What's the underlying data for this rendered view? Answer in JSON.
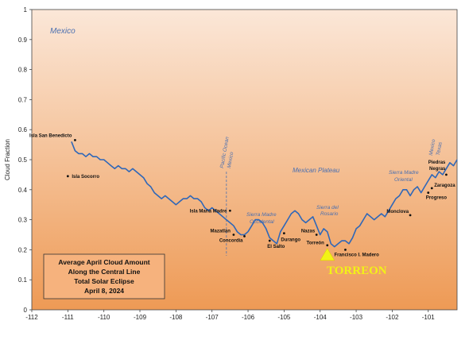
{
  "chart_data": {
    "type": "line",
    "ylabel": "Cloud Fraction",
    "xlim": [
      -112,
      -100.2
    ],
    "ylim": [
      0,
      1
    ],
    "xticks": [
      "-112",
      "-111",
      "-110",
      "-109",
      "-108",
      "-107",
      "-106",
      "-105",
      "-104",
      "-103",
      "-102",
      "-101"
    ],
    "yticks": [
      "0",
      "0.1",
      "0.2",
      "0.3",
      "0.4",
      "0.5",
      "0.6",
      "0.7",
      "0.8",
      "0.9",
      "1"
    ],
    "background_gradient": [
      "#fbe7d8",
      "#ee9a55"
    ],
    "line_color": "#2f67b8",
    "series": [
      {
        "x": [
          -110.9,
          -110.8,
          -110.7,
          -110.6,
          -110.5,
          -110.4,
          -110.3,
          -110.2,
          -110.1,
          -110.0,
          -109.9,
          -109.8,
          -109.7,
          -109.6,
          -109.5,
          -109.4,
          -109.3,
          -109.2,
          -109.1,
          -109.0,
          -108.9,
          -108.8,
          -108.7,
          -108.6,
          -108.5,
          -108.4,
          -108.3,
          -108.2,
          -108.1,
          -108.0,
          -107.9,
          -107.8,
          -107.7,
          -107.6,
          -107.5,
          -107.4,
          -107.3,
          -107.2,
          -107.1,
          -107.0,
          -106.9,
          -106.8,
          -106.7,
          -106.6,
          -106.5,
          -106.4,
          -106.3,
          -106.2,
          -106.1,
          -106.0,
          -105.9,
          -105.8,
          -105.7,
          -105.6,
          -105.5,
          -105.4,
          -105.3,
          -105.2,
          -105.1,
          -105.0,
          -104.9,
          -104.8,
          -104.7,
          -104.6,
          -104.5,
          -104.4,
          -104.3,
          -104.2,
          -104.1,
          -104.0,
          -103.9,
          -103.8,
          -103.7,
          -103.6,
          -103.5,
          -103.4,
          -103.3,
          -103.2,
          -103.1,
          -103.0,
          -102.9,
          -102.8,
          -102.7,
          -102.6,
          -102.5,
          -102.4,
          -102.3,
          -102.2,
          -102.1,
          -102.0,
          -101.9,
          -101.8,
          -101.7,
          -101.6,
          -101.5,
          -101.4,
          -101.3,
          -101.2,
          -101.1,
          -101.0,
          -100.9,
          -100.8,
          -100.7,
          -100.6,
          -100.5,
          -100.4,
          -100.3,
          -100.2
        ],
        "y": [
          0.56,
          0.53,
          0.52,
          0.52,
          0.51,
          0.52,
          0.51,
          0.51,
          0.5,
          0.5,
          0.49,
          0.48,
          0.47,
          0.48,
          0.47,
          0.47,
          0.46,
          0.47,
          0.46,
          0.45,
          0.44,
          0.42,
          0.41,
          0.39,
          0.38,
          0.37,
          0.38,
          0.37,
          0.36,
          0.35,
          0.36,
          0.37,
          0.37,
          0.38,
          0.37,
          0.37,
          0.36,
          0.34,
          0.33,
          0.34,
          0.33,
          0.32,
          0.31,
          0.3,
          0.29,
          0.28,
          0.26,
          0.25,
          0.25,
          0.26,
          0.28,
          0.3,
          0.3,
          0.29,
          0.27,
          0.24,
          0.23,
          0.22,
          0.26,
          0.28,
          0.3,
          0.32,
          0.33,
          0.32,
          0.3,
          0.29,
          0.3,
          0.31,
          0.28,
          0.25,
          0.27,
          0.26,
          0.22,
          0.21,
          0.22,
          0.23,
          0.23,
          0.22,
          0.24,
          0.27,
          0.28,
          0.3,
          0.32,
          0.31,
          0.3,
          0.31,
          0.32,
          0.31,
          0.33,
          0.35,
          0.37,
          0.38,
          0.4,
          0.4,
          0.38,
          0.4,
          0.41,
          0.39,
          0.41,
          0.43,
          0.45,
          0.44,
          0.46,
          0.45,
          0.47,
          0.49,
          0.48,
          0.5
        ]
      }
    ],
    "sites": [
      {
        "name": "Isla San Benedicto",
        "x": -110.8,
        "y": 0.565
      },
      {
        "name": "Isla Socorro",
        "x": -111.0,
        "y": 0.445
      },
      {
        "name": "Isla Maria Madre",
        "x": -106.5,
        "y": 0.33
      },
      {
        "name": "Mazatlan",
        "x": -106.4,
        "y": 0.25
      },
      {
        "name": "Concordia",
        "x": -106.1,
        "y": 0.245
      },
      {
        "name": "El Salto",
        "x": -105.4,
        "y": 0.23
      },
      {
        "name": "Durango",
        "x": -105.0,
        "y": 0.255
      },
      {
        "name": "Nazas",
        "x": -104.1,
        "y": 0.25
      },
      {
        "name": "Torreón",
        "x": -103.8,
        "y": 0.215
      },
      {
        "name": "Francisco I. Madero",
        "x": -103.3,
        "y": 0.2
      },
      {
        "name": "Monclova",
        "x": -101.5,
        "y": 0.315
      },
      {
        "name": "Piedras Negras",
        "x": -100.5,
        "y": 0.45
      },
      {
        "name": "Zaragoza",
        "x": -100.9,
        "y": 0.405
      },
      {
        "name": "Progreso",
        "x": -101.0,
        "y": 0.39
      }
    ],
    "boundaries": [
      {
        "x": -106.6,
        "labels": [
          "Pacific Ocean",
          "Mexico"
        ]
      },
      {
        "x": -100.8,
        "labels": [
          "Mexico",
          "Texas"
        ]
      }
    ],
    "region_labels": {
      "country": "Mexico",
      "plateau": "Mexican Plateau",
      "occidental_1": "Sierra Madre",
      "occidental_2": "Occidental",
      "rosario_1": "Sierra del",
      "rosario_2": "Rosario",
      "oriental_1": "Sierra Madre",
      "oriental_2": "Oriental"
    },
    "caption": [
      "Average April Cloud Amount",
      "Along the Central Line",
      "Total Solar Eclipse",
      "April 8, 2024"
    ],
    "highlight": {
      "label": "TORREON",
      "x": -103.8,
      "color": "#f2f216"
    }
  }
}
